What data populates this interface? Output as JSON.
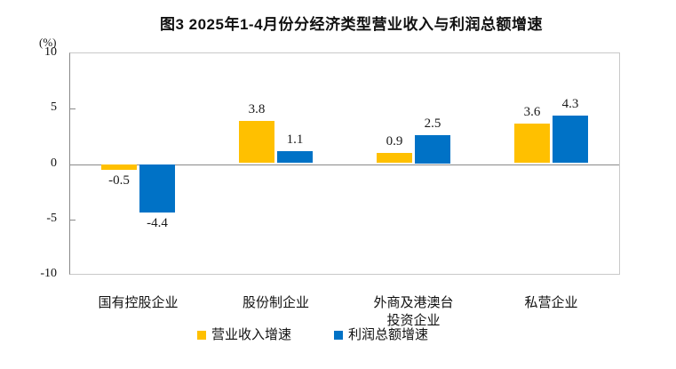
{
  "title": "图3 2025年1-4月份分经济类型营业收入与利润总额增速",
  "y_axis": {
    "unit": "(%)",
    "tick_labels": [
      "10",
      "5",
      "0",
      "-5",
      "-10"
    ]
  },
  "colors": {
    "revenue": "#FFC000",
    "profit": "#0072C6",
    "axis_line": "#8a8a8a",
    "plot_border": "#c9c9c9"
  },
  "chart_data": {
    "type": "bar",
    "title": "图3 2025年1-4月份分经济类型营业收入与利润总额增速",
    "unit": "%",
    "categories": [
      "国有控股企业",
      "股份制企业",
      "外商及港澳台投资企业",
      "私营企业"
    ],
    "categories_display": [
      [
        "国有控股企业"
      ],
      [
        "股份制企业"
      ],
      [
        "外商及港澳台",
        "投资企业"
      ],
      [
        "私营企业"
      ]
    ],
    "series": [
      {
        "name": "营业收入增速",
        "color": "#FFC000",
        "values": [
          -0.5,
          3.8,
          0.9,
          3.6
        ]
      },
      {
        "name": "利润总额增速",
        "color": "#0072C6",
        "values": [
          -4.4,
          1.1,
          2.5,
          4.3
        ]
      }
    ],
    "data_labels": [
      [
        "-0.5",
        "3.8",
        "0.9",
        "3.6"
      ],
      [
        "-4.4",
        "1.1",
        "2.5",
        "4.3"
      ]
    ],
    "ylim": [
      -10,
      10
    ],
    "y_ticks": [
      10,
      5,
      0,
      -5,
      -10
    ],
    "grid": false,
    "legend_position": "bottom"
  },
  "legend": {
    "items": [
      {
        "label": "营业收入增速",
        "color": "#FFC000"
      },
      {
        "label": "利润总额增速",
        "color": "#0072C6"
      }
    ]
  }
}
